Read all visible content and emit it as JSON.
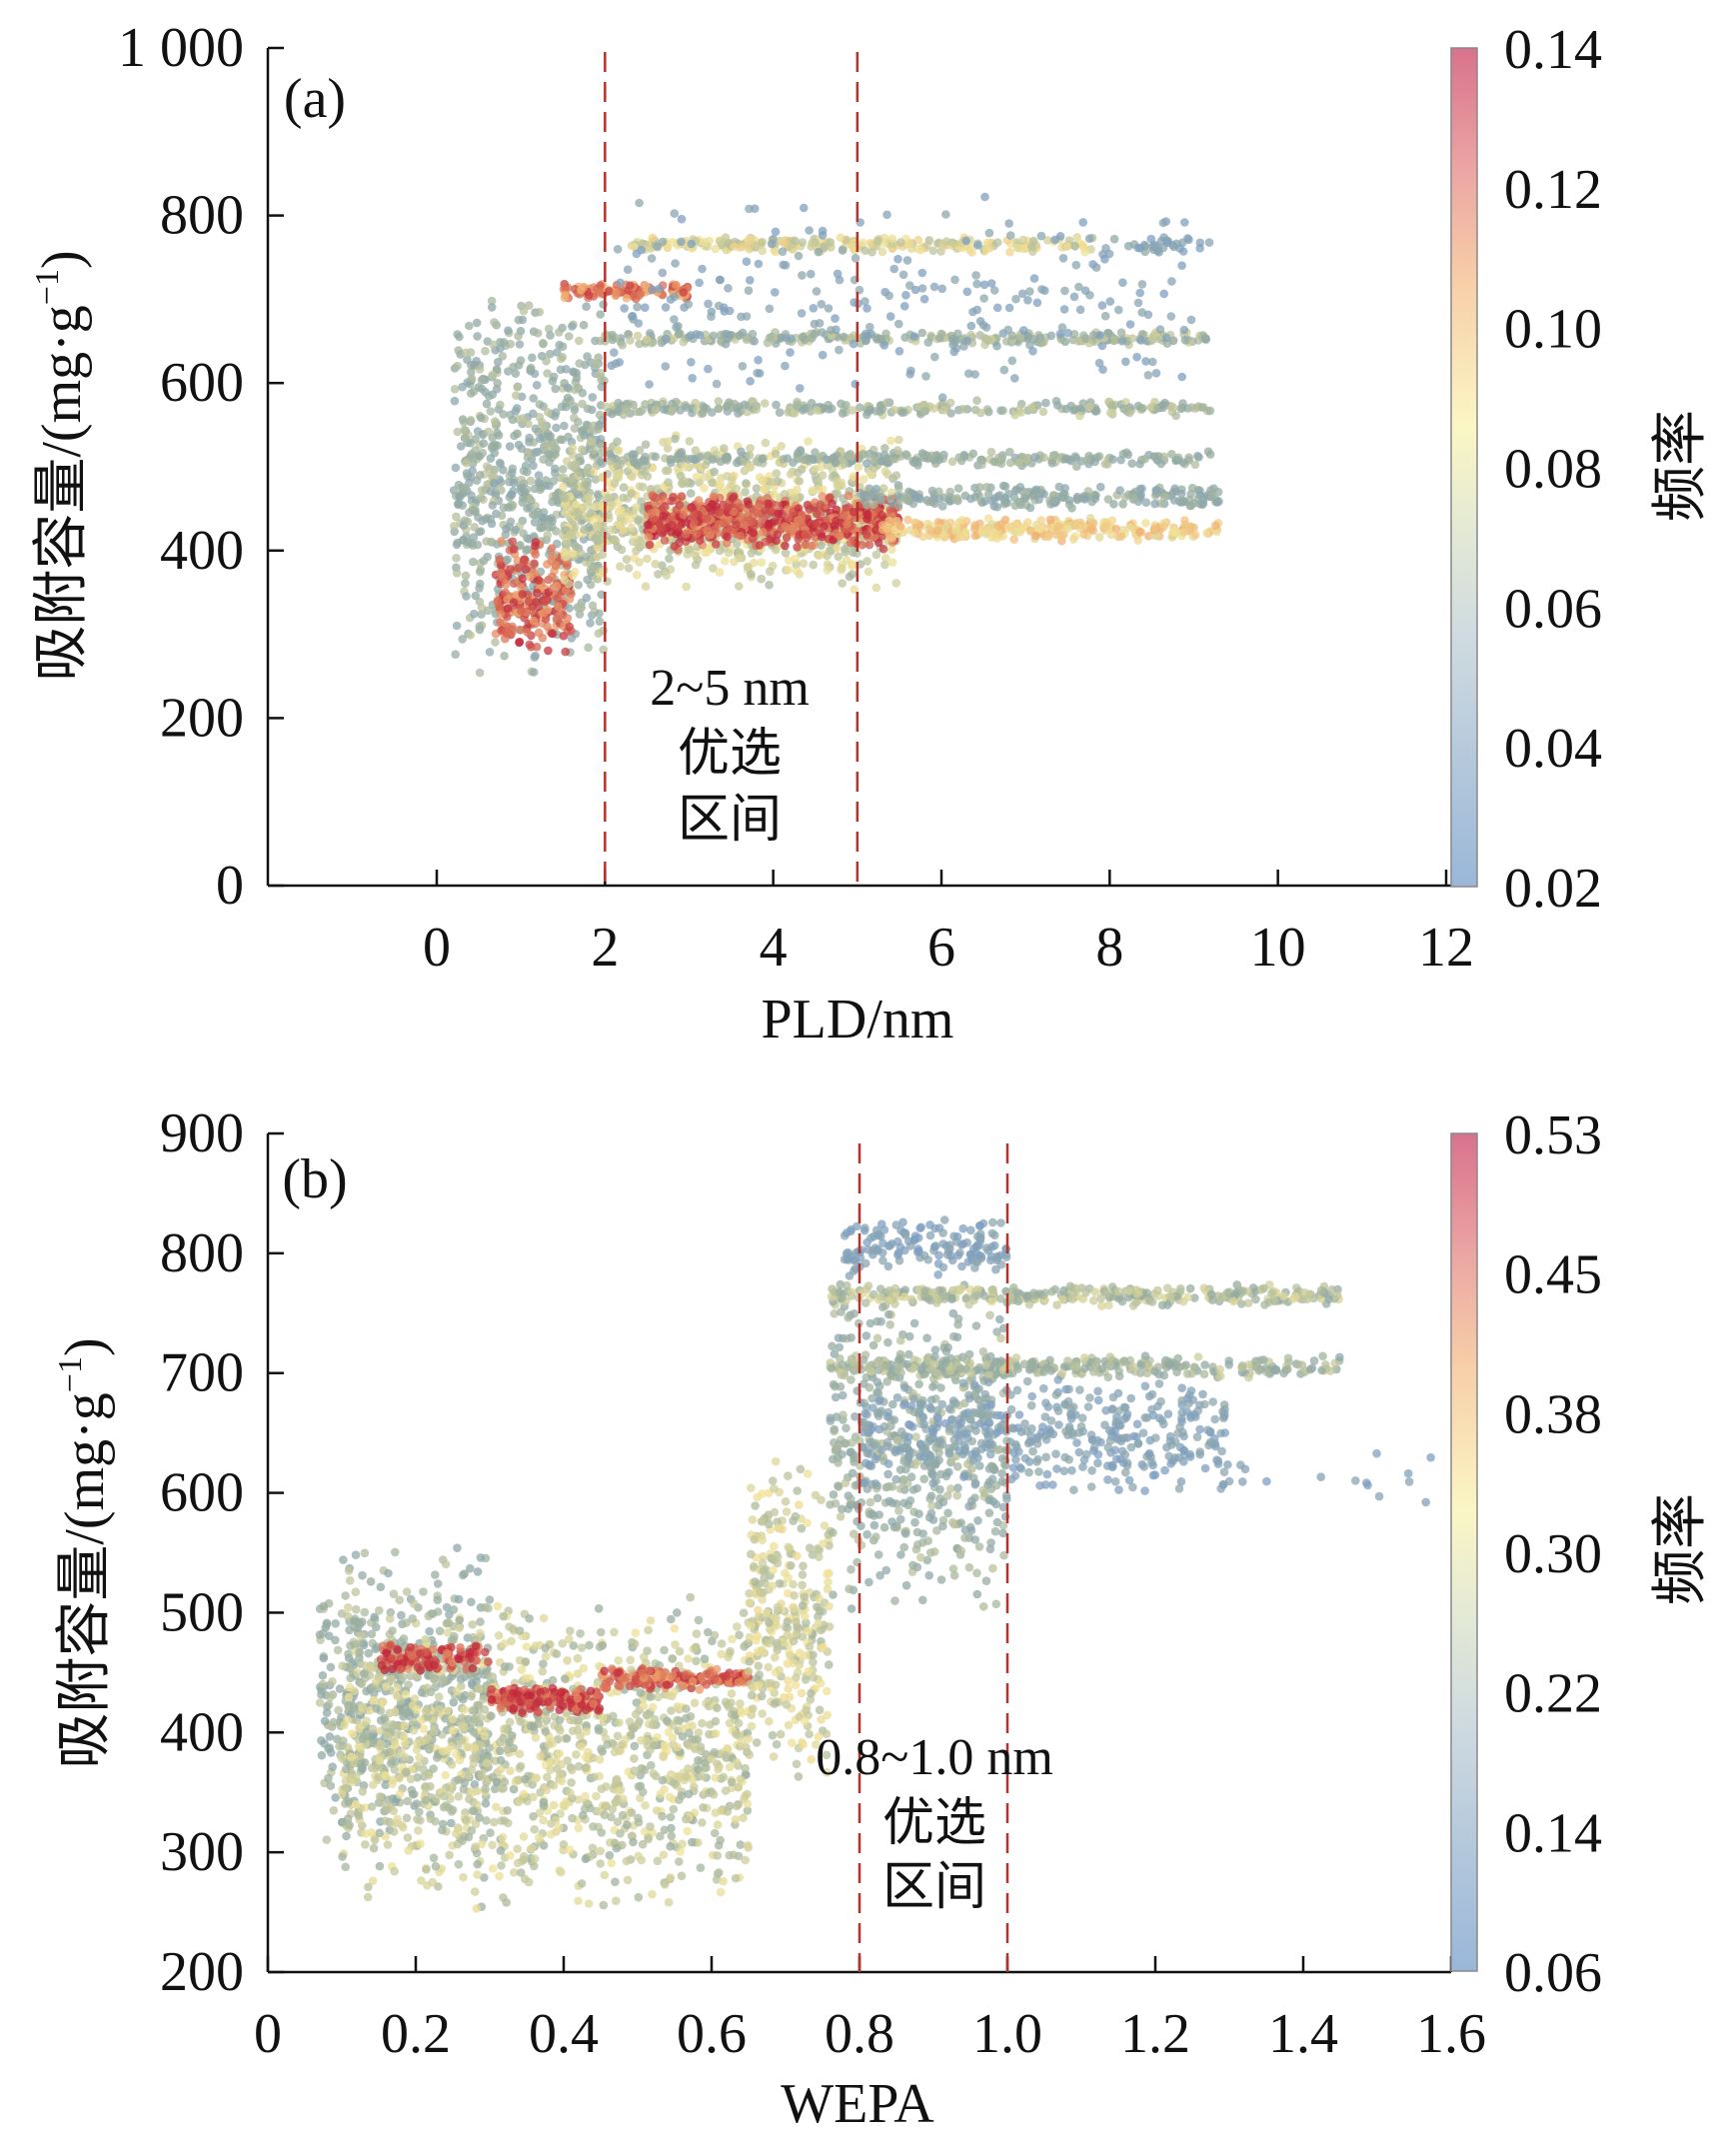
{
  "chart_data": [
    {
      "type": "scatter",
      "panel_label": "(a)",
      "xlabel": "PLD/nm",
      "ylabel": {
        "main": "吸附容量/(mg·g",
        "sup": "−1",
        "close": ")"
      },
      "xlim": [
        -2,
        12
      ],
      "ylim": [
        0,
        1000
      ],
      "xticks": [
        "0",
        "2",
        "4",
        "6",
        "8",
        "10",
        "12"
      ],
      "xtick_values": [
        0,
        2,
        4,
        6,
        8,
        10,
        12
      ],
      "yticks": [
        "0",
        "200",
        "400",
        "600",
        "800",
        "1 000"
      ],
      "ytick_values": [
        0,
        200,
        400,
        600,
        800,
        1000
      ],
      "colorbar": {
        "label": "频率",
        "ticks": [
          "0.02",
          "0.04",
          "0.06",
          "0.08",
          "0.10",
          "0.12",
          "0.14"
        ],
        "range": [
          0.02,
          0.14
        ]
      },
      "reference_lines_x": [
        2,
        5
      ],
      "annotation": [
        "2~5 nm",
        "优选",
        "区间"
      ],
      "density_clusters": [
        {
          "x": [
            0.2,
            2.0
          ],
          "y": [
            240,
            720
          ],
          "n": 750,
          "freq": 0.055
        },
        {
          "x": [
            0.7,
            1.6
          ],
          "y": [
            270,
            420
          ],
          "n": 220,
          "freq": 0.125
        },
        {
          "x": [
            1.5,
            5.5
          ],
          "y": [
            350,
            540
          ],
          "n": 900,
          "freq": 0.075
        },
        {
          "x": [
            2.5,
            5.5
          ],
          "y": [
            400,
            470
          ],
          "n": 550,
          "freq": 0.13
        },
        {
          "x": [
            5.3,
            9.3
          ],
          "y": [
            410,
            440
          ],
          "n": 260,
          "freq": 0.095
        },
        {
          "x": [
            2.3,
            7.8
          ],
          "y": [
            755,
            775
          ],
          "n": 260,
          "freq": 0.08
        },
        {
          "x": [
            8.0,
            9.2
          ],
          "y": [
            755,
            775
          ],
          "n": 30,
          "freq": 0.035
        },
        {
          "x": [
            1.5,
            3.0
          ],
          "y": [
            700,
            720
          ],
          "n": 110,
          "freq": 0.12
        },
        {
          "x": [
            2.0,
            9.2
          ],
          "y": [
            645,
            662
          ],
          "n": 260,
          "freq": 0.06
        },
        {
          "x": [
            2.0,
            9.2
          ],
          "y": [
            560,
            580
          ],
          "n": 260,
          "freq": 0.06
        },
        {
          "x": [
            2.0,
            9.2
          ],
          "y": [
            500,
            520
          ],
          "n": 260,
          "freq": 0.055
        },
        {
          "x": [
            5.0,
            9.3
          ],
          "y": [
            450,
            480
          ],
          "n": 220,
          "freq": 0.05
        },
        {
          "x": [
            2.0,
            9.0
          ],
          "y": [
            580,
            830
          ],
          "n": 260,
          "freq": 0.03
        }
      ]
    },
    {
      "type": "scatter",
      "panel_label": "(b)",
      "xlabel": "WEPA",
      "ylabel": {
        "main": "吸附容量/(mg·g",
        "sup": "−1",
        "close": ")"
      },
      "xlim": [
        0,
        1.6
      ],
      "ylim": [
        200,
        900
      ],
      "xticks": [
        "0",
        "0.2",
        "0.4",
        "0.6",
        "0.8",
        "1.0",
        "1.2",
        "1.4",
        "1.6"
      ],
      "xtick_values": [
        0,
        0.2,
        0.4,
        0.6,
        0.8,
        1.0,
        1.2,
        1.4,
        1.6
      ],
      "yticks": [
        "200",
        "300",
        "400",
        "500",
        "600",
        "700",
        "800",
        "900"
      ],
      "ytick_values": [
        200,
        300,
        400,
        500,
        600,
        700,
        800,
        900
      ],
      "colorbar": {
        "label": "频率",
        "ticks": [
          "0.06",
          "0.14",
          "0.22",
          "0.30",
          "0.38",
          "0.45",
          "0.53"
        ],
        "range": [
          0.06,
          0.53
        ]
      },
      "reference_lines_x": [
        0.8,
        1.0
      ],
      "annotation": [
        "0.8~1.0 nm",
        "优选",
        "区间"
      ],
      "density_clusters": [
        {
          "x": [
            0.07,
            0.3
          ],
          "y": [
            300,
            560
          ],
          "n": 500,
          "freq": 0.2
        },
        {
          "x": [
            0.1,
            0.65
          ],
          "y": [
            250,
            520
          ],
          "n": 1300,
          "freq": 0.26
        },
        {
          "x": [
            0.15,
            0.3
          ],
          "y": [
            450,
            475
          ],
          "n": 110,
          "freq": 0.5
        },
        {
          "x": [
            0.3,
            0.45
          ],
          "y": [
            415,
            440
          ],
          "n": 160,
          "freq": 0.5
        },
        {
          "x": [
            0.45,
            0.65
          ],
          "y": [
            435,
            455
          ],
          "n": 160,
          "freq": 0.48
        },
        {
          "x": [
            0.65,
            0.76
          ],
          "y": [
            350,
            630
          ],
          "n": 320,
          "freq": 0.28
        },
        {
          "x": [
            0.76,
            1.0
          ],
          "y": [
            500,
            770
          ],
          "n": 500,
          "freq": 0.2
        },
        {
          "x": [
            0.76,
            1.45
          ],
          "y": [
            755,
            775
          ],
          "n": 320,
          "freq": 0.24
        },
        {
          "x": [
            0.76,
            1.45
          ],
          "y": [
            695,
            715
          ],
          "n": 320,
          "freq": 0.22
        },
        {
          "x": [
            0.8,
            1.3
          ],
          "y": [
            600,
            700
          ],
          "n": 420,
          "freq": 0.11
        },
        {
          "x": [
            0.78,
            1.0
          ],
          "y": [
            780,
            830
          ],
          "n": 150,
          "freq": 0.09
        },
        {
          "x": [
            1.0,
            1.6
          ],
          "y": [
            590,
            640
          ],
          "n": 30,
          "freq": 0.07
        }
      ]
    }
  ],
  "colors": {
    "reference_line": "#b8322a",
    "low": "#7f9fc0",
    "mid": "#f2e39a",
    "high": "#c0283b"
  }
}
